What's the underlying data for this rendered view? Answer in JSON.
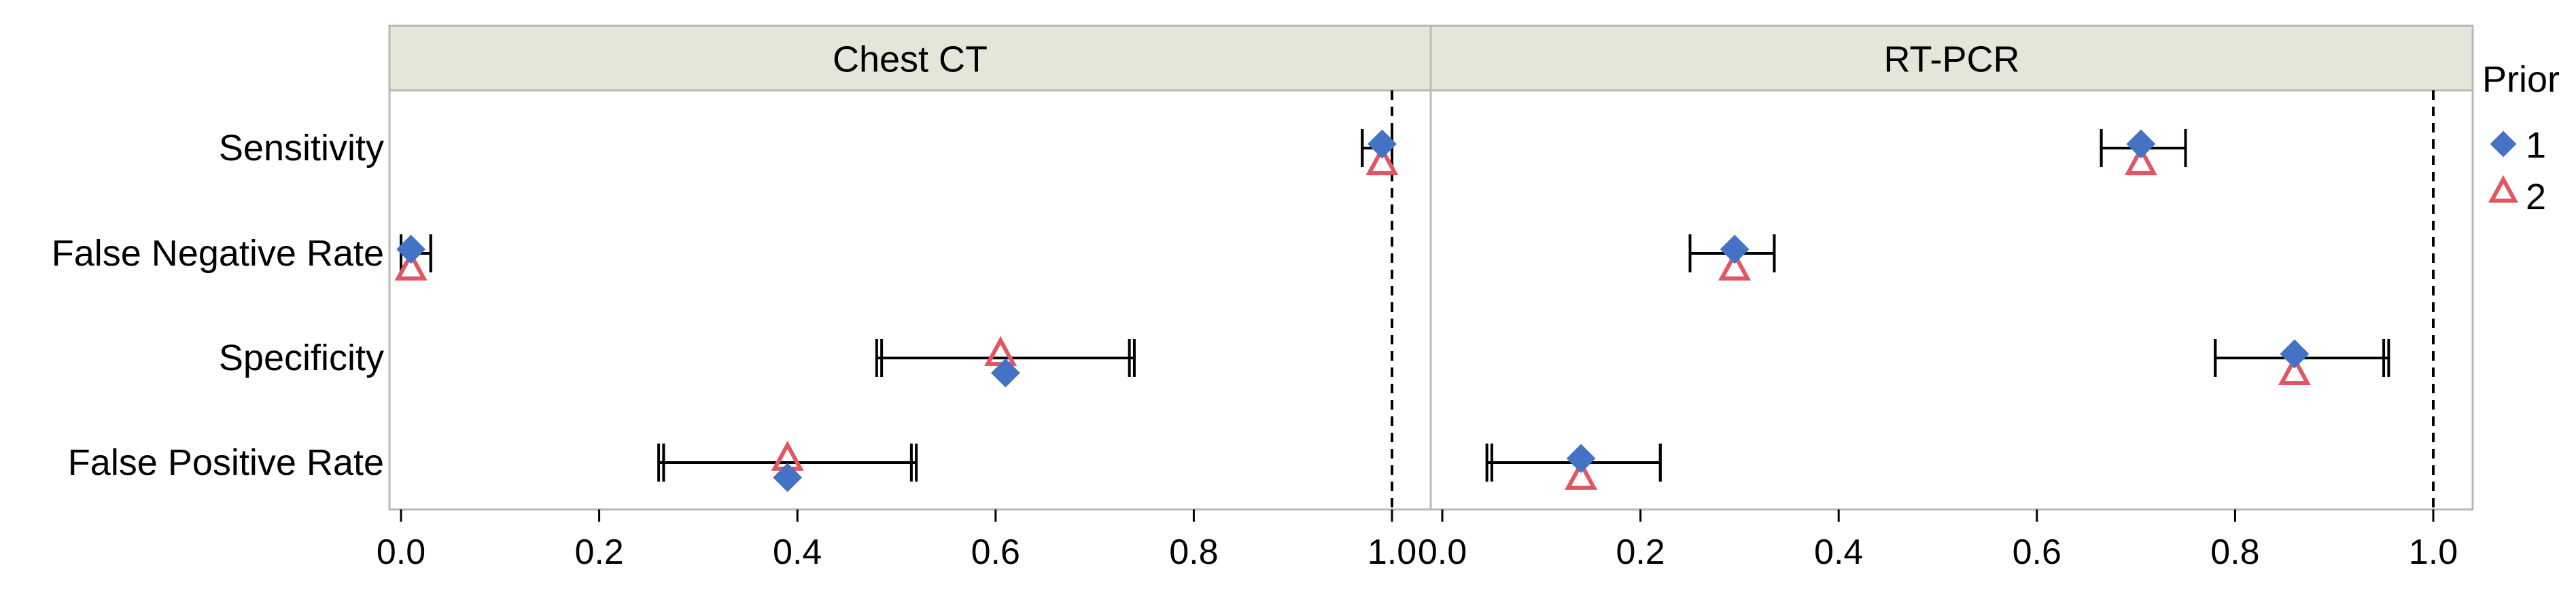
{
  "chart_data": {
    "type": "scatter",
    "subtype": "forest-plot-faceted",
    "facets": [
      "Chest CT",
      "RT-PCR"
    ],
    "categories": [
      "Sensitivity",
      "False Negative Rate",
      "Specificity",
      "False Positive Rate"
    ],
    "legend": {
      "title": "Prior",
      "placement": "right",
      "entries": [
        {
          "label": "1",
          "marker": "diamond",
          "color": "#4472C4"
        },
        {
          "label": "2",
          "marker": "triangle-open",
          "color": "#E05763"
        }
      ]
    },
    "xlim": [
      0,
      1.0
    ],
    "x_ticks": [
      0.0,
      0.2,
      0.4,
      0.6,
      0.8,
      1.0
    ],
    "x_tick_labels": [
      "0.0",
      "0.2",
      "0.4",
      "0.6",
      "0.8",
      "1.0"
    ],
    "reference_line": 1.0,
    "grid": false,
    "points": {
      "Chest CT": {
        "Sensitivity": {
          "prior1": {
            "est": 0.99,
            "lo": 0.97,
            "hi": 1.0
          },
          "prior2": {
            "est": 0.99,
            "lo": 0.97,
            "hi": 1.0
          }
        },
        "False Negative Rate": {
          "prior1": {
            "est": 0.01,
            "lo": 0.0,
            "hi": 0.03
          },
          "prior2": {
            "est": 0.01,
            "lo": 0.0,
            "hi": 0.03
          }
        },
        "Specificity": {
          "prior1": {
            "est": 0.61,
            "lo": 0.48,
            "hi": 0.74
          },
          "prior2": {
            "est": 0.605,
            "lo": 0.485,
            "hi": 0.735
          }
        },
        "False Positive Rate": {
          "prior1": {
            "est": 0.39,
            "lo": 0.26,
            "hi": 0.52
          },
          "prior2": {
            "est": 0.39,
            "lo": 0.265,
            "hi": 0.515
          }
        }
      },
      "RT-PCR": {
        "Sensitivity": {
          "prior1": {
            "est": 0.705,
            "lo": 0.665,
            "hi": 0.75
          },
          "prior2": {
            "est": 0.705,
            "lo": 0.665,
            "hi": 0.75
          }
        },
        "False Negative Rate": {
          "prior1": {
            "est": 0.295,
            "lo": 0.25,
            "hi": 0.335
          },
          "prior2": {
            "est": 0.295,
            "lo": 0.25,
            "hi": 0.335
          }
        },
        "Specificity": {
          "prior1": {
            "est": 0.86,
            "lo": 0.78,
            "hi": 0.955
          },
          "prior2": {
            "est": 0.86,
            "lo": 0.78,
            "hi": 0.95
          }
        },
        "False Positive Rate": {
          "prior1": {
            "est": 0.14,
            "lo": 0.045,
            "hi": 0.22
          },
          "prior2": {
            "est": 0.14,
            "lo": 0.05,
            "hi": 0.22
          }
        }
      }
    }
  }
}
